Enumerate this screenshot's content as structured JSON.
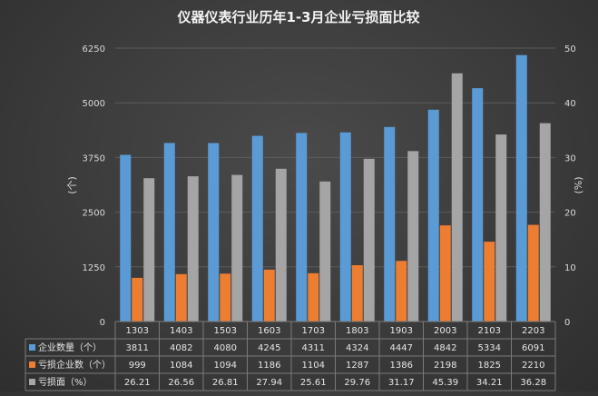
{
  "chart_data": {
    "type": "bar",
    "title": "仪器仪表行业历年1-3月企业亏损面比较",
    "categories": [
      "1303",
      "1403",
      "1503",
      "1603",
      "1703",
      "1803",
      "1903",
      "2003",
      "2103",
      "2203"
    ],
    "y_left": {
      "label": "(个)",
      "ylim": [
        0,
        6250
      ],
      "ticks": [
        "0",
        "1250",
        "2500",
        "3750",
        "5000",
        "6250"
      ]
    },
    "y_right": {
      "label": "(%)",
      "ylim": [
        0,
        50
      ],
      "ticks": [
        "0",
        "10",
        "20",
        "30",
        "40",
        "50"
      ]
    },
    "grid": true,
    "legend": "table-bottom",
    "series": [
      {
        "name": "企业数量（个）",
        "axis": "left",
        "color": "#5b9bd5",
        "values": [
          3811,
          4082,
          4080,
          4245,
          4311,
          4324,
          4447,
          4842,
          5334,
          6091
        ],
        "labels": [
          "3811",
          "4082",
          "4080",
          "4245",
          "4311",
          "4324",
          "4447",
          "4842",
          "5334",
          "6091"
        ]
      },
      {
        "name": "亏损企业数（个）",
        "axis": "left",
        "color": "#ed7d31",
        "values": [
          999,
          1084,
          1094,
          1186,
          1104,
          1287,
          1386,
          2198,
          1825,
          2210
        ],
        "labels": [
          "999",
          "1084",
          "1094",
          "1186",
          "1104",
          "1287",
          "1386",
          "2198",
          "1825",
          "2210"
        ]
      },
      {
        "name": "亏损面（%）",
        "axis": "right",
        "color": "#a5a5a5",
        "values": [
          26.21,
          26.56,
          26.81,
          27.94,
          25.61,
          29.76,
          31.17,
          45.39,
          34.21,
          36.28
        ],
        "labels": [
          "26.21",
          "26.56",
          "26.81",
          "27.94",
          "25.61",
          "29.76",
          "31.17",
          "45.39",
          "34.21",
          "36.28"
        ]
      }
    ]
  }
}
